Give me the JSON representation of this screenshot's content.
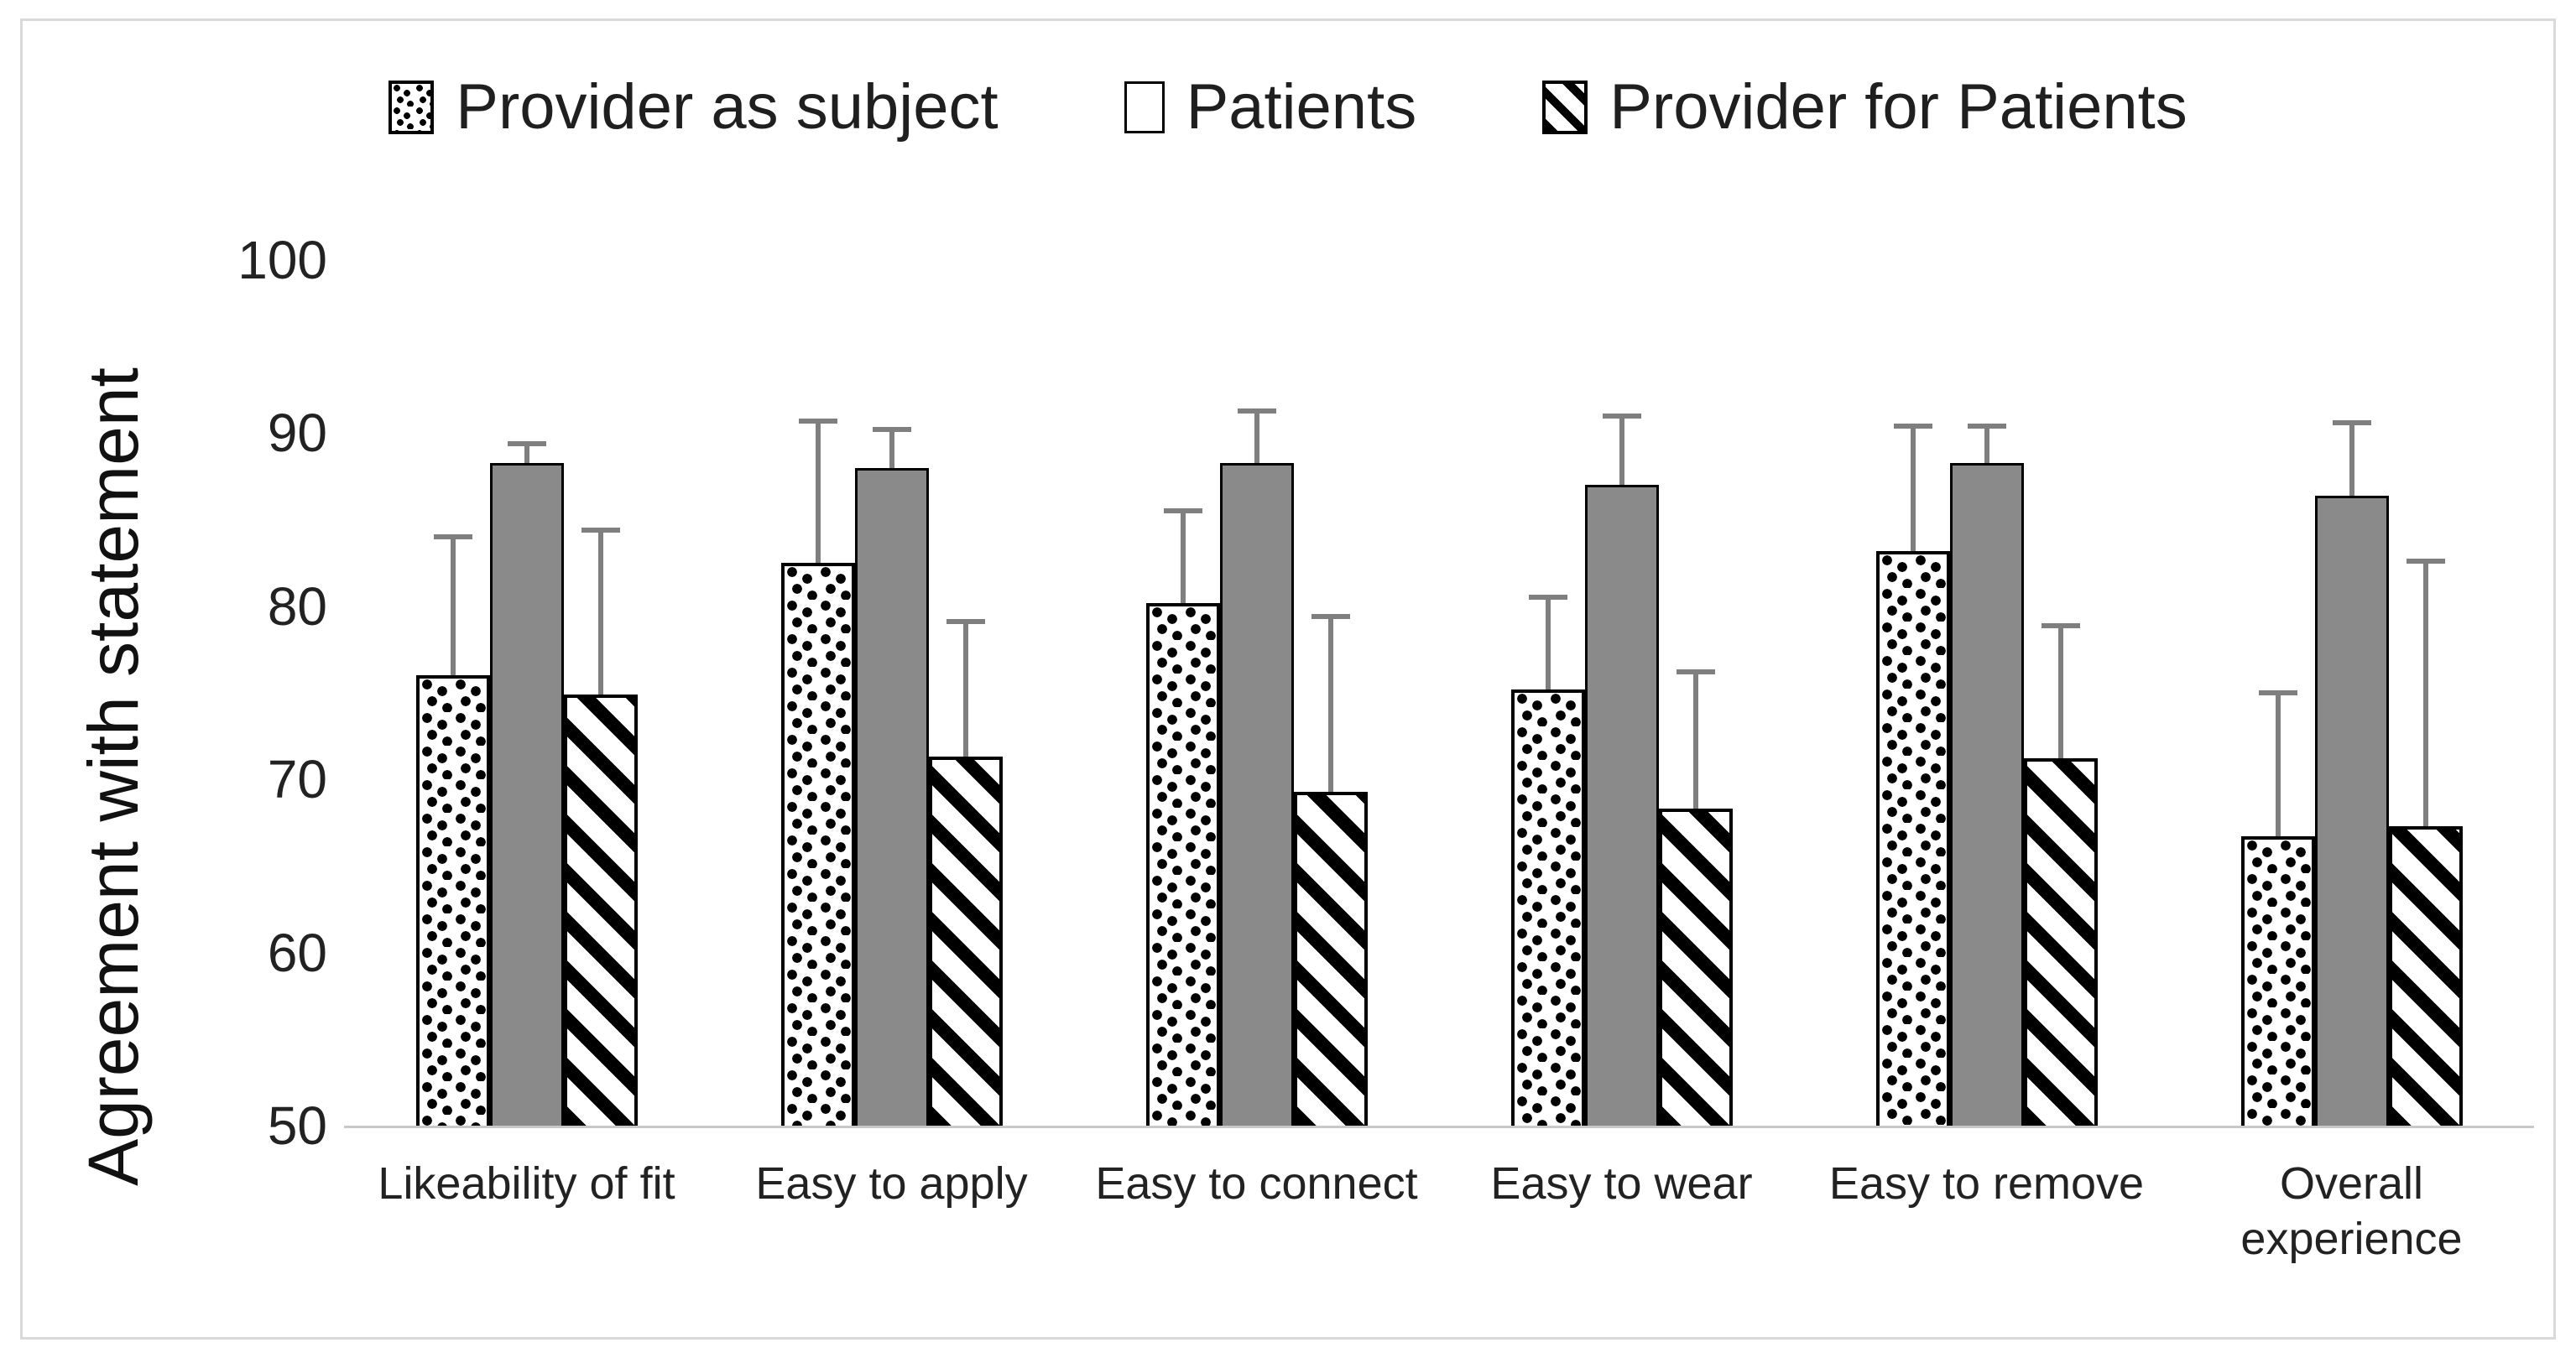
{
  "figure": {
    "y_axis_title": "Agreement with statement",
    "colors": {
      "patients_fill": "#8a8a8a",
      "error_bar": "#7f7f7f",
      "baseline": "#c9c9c9",
      "frame_border": "#d9d9d9",
      "bar_border": "#000000",
      "text": "#1f1f1f"
    }
  },
  "legend": {
    "position": "top-center",
    "items": [
      {
        "label": "Provider as subject",
        "swatch": "dotted-pattern-swatch"
      },
      {
        "label": "Patients",
        "swatch": "solid-gray-swatch"
      },
      {
        "label": "Provider for Patients",
        "swatch": "diagonal-stripe-swatch"
      }
    ]
  },
  "chart_data": {
    "type": "bar",
    "title": "",
    "xlabel": "",
    "ylabel": "Agreement with statement",
    "ylim": [
      50,
      100
    ],
    "y_ticks": [
      100,
      90,
      80,
      70,
      60,
      50
    ],
    "grid": false,
    "legend_position": "top-center",
    "error_bars": "upper-only, gray stems with end caps",
    "categories": [
      "Likeability of fit",
      "Easy to apply",
      "Easy to connect",
      "Easy to wear",
      "Easy to remove",
      "Overall experience"
    ],
    "category_lines": [
      [
        "Likeability of fit"
      ],
      [
        "Easy to apply"
      ],
      [
        "Easy to connect"
      ],
      [
        "Easy to wear"
      ],
      [
        "Easy to remove"
      ],
      [
        "Overall",
        "experience"
      ]
    ],
    "series": [
      {
        "name": "Provider as subject",
        "pattern": "dotted-speckle",
        "pattern_key": "dotted",
        "values": [
          76.0,
          82.5,
          80.2,
          75.2,
          83.2,
          66.7
        ],
        "error_upper": [
          8.0,
          8.2,
          5.3,
          5.3,
          7.2,
          8.3
        ]
      },
      {
        "name": "Patients",
        "pattern": "solid-gray",
        "pattern_key": "gray",
        "values": [
          88.3,
          88.0,
          88.3,
          87.0,
          88.3,
          86.4
        ],
        "error_upper": [
          1.1,
          2.2,
          3.0,
          4.0,
          2.1,
          4.2
        ]
      },
      {
        "name": "Provider for Patients",
        "pattern": "diagonal-stripes",
        "pattern_key": "striped",
        "values": [
          74.9,
          71.3,
          69.3,
          68.3,
          71.2,
          67.3
        ],
        "error_upper": [
          9.5,
          7.8,
          10.1,
          7.9,
          7.7,
          15.3
        ]
      }
    ]
  }
}
